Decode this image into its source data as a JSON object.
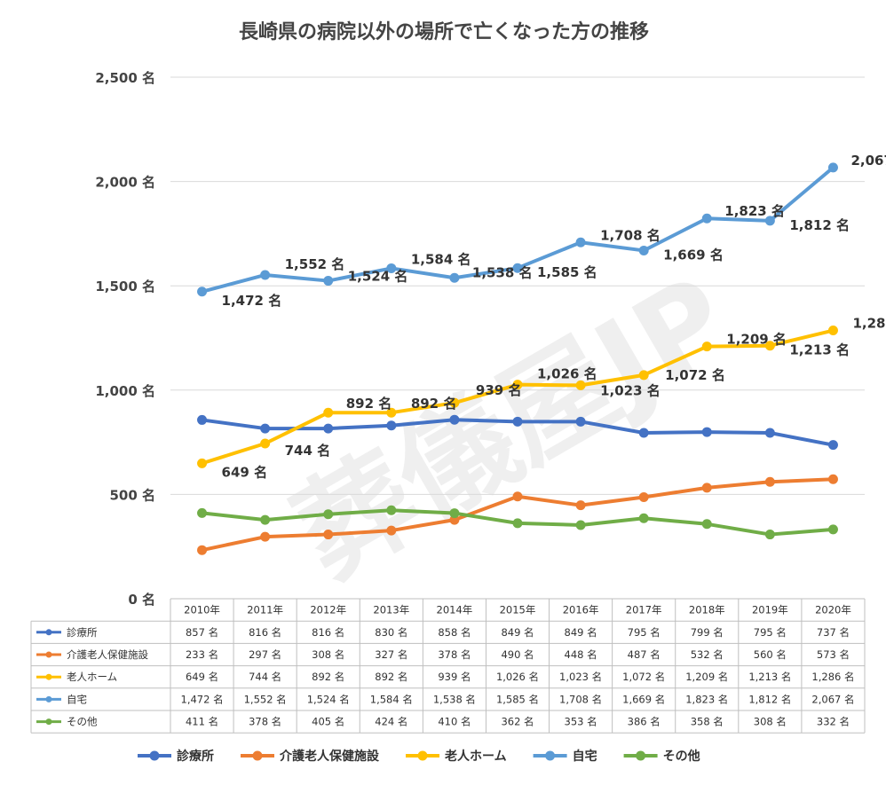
{
  "chart_data": {
    "type": "line",
    "title": "長崎県の病院以外の場所で亡くなった方の推移",
    "unit": "名",
    "categories": [
      "2010年",
      "2011年",
      "2012年",
      "2013年",
      "2014年",
      "2015年",
      "2016年",
      "2017年",
      "2018年",
      "2019年",
      "2020年"
    ],
    "ylim": [
      0,
      2500
    ],
    "yticks": [
      "0 名",
      "500 名",
      "1,000 名",
      "1,500 名",
      "2,000 名",
      "2,500 名"
    ],
    "grid": true,
    "legend_position": "bottom",
    "series": [
      {
        "name": "診療所",
        "color": "#4472C4",
        "values": [
          857,
          816,
          816,
          830,
          858,
          849,
          849,
          795,
          799,
          795,
          737
        ],
        "labels": [
          "857 名",
          "816 名",
          "816 名",
          "830 名",
          "858 名",
          "849 名",
          "849 名",
          "795 名",
          "799 名",
          "795 名",
          "737 名"
        ]
      },
      {
        "name": "介護老人保健施設",
        "color": "#ED7D31",
        "values": [
          233,
          297,
          308,
          327,
          378,
          490,
          448,
          487,
          532,
          560,
          573
        ],
        "labels": [
          "233 名",
          "297 名",
          "308 名",
          "327 名",
          "378 名",
          "490 名",
          "448 名",
          "487 名",
          "532 名",
          "560 名",
          "573 名"
        ]
      },
      {
        "name": "老人ホーム",
        "color": "#FFC000",
        "values": [
          649,
          744,
          892,
          892,
          939,
          1026,
          1023,
          1072,
          1209,
          1213,
          1286
        ],
        "labels": [
          "649 名",
          "744 名",
          "892 名",
          "892 名",
          "939 名",
          "1,026 名",
          "1,023 名",
          "1,072 名",
          "1,209 名",
          "1,213 名",
          "1,286 名"
        ]
      },
      {
        "name": "自宅",
        "color": "#5B9BD5",
        "values": [
          1472,
          1552,
          1524,
          1584,
          1538,
          1585,
          1708,
          1669,
          1823,
          1812,
          2067
        ],
        "labels": [
          "1,472 名",
          "1,552 名",
          "1,524 名",
          "1,584 名",
          "1,538 名",
          "1,585 名",
          "1,708 名",
          "1,669 名",
          "1,823 名",
          "1,812 名",
          "2,067 名"
        ]
      },
      {
        "name": "その他",
        "color": "#70AD47",
        "values": [
          411,
          378,
          405,
          424,
          410,
          362,
          353,
          386,
          358,
          308,
          332
        ],
        "labels": [
          "411 名",
          "378 名",
          "405 名",
          "424 名",
          "410 名",
          "362 名",
          "353 名",
          "386 名",
          "358 名",
          "308 名",
          "332 名"
        ]
      }
    ],
    "watermark": "葬儀屋JP"
  }
}
